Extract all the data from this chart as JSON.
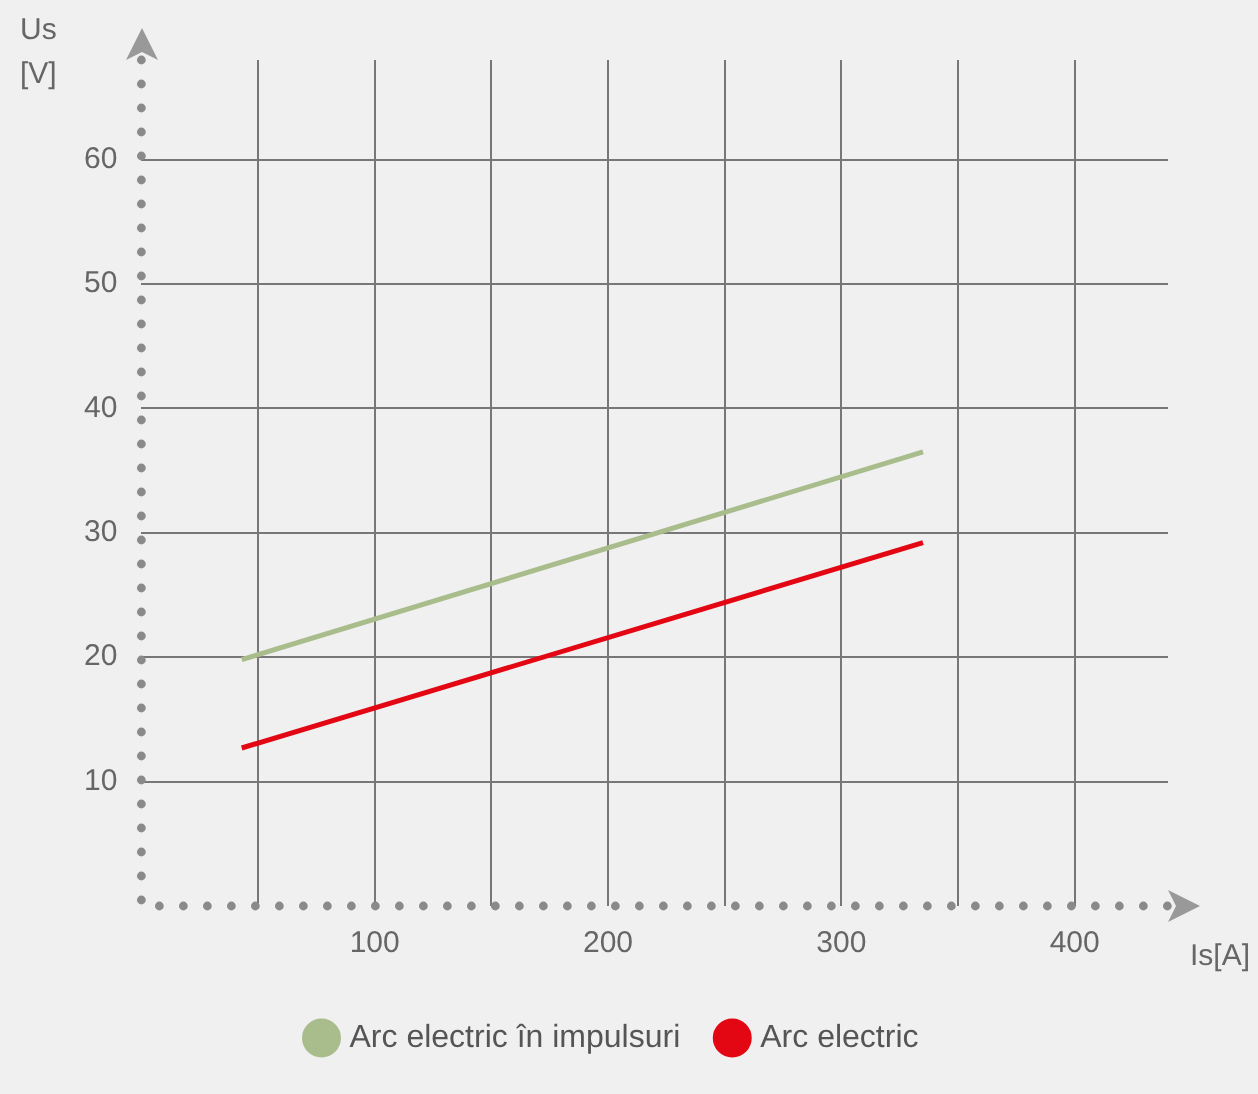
{
  "chart_data": {
    "type": "line",
    "xlabel": "Is[A]",
    "ylabel": "Us [V]",
    "xlim": [
      0,
      440
    ],
    "ylim": [
      0,
      68
    ],
    "xticks": [
      {
        "value": 50,
        "label": null
      },
      100,
      {
        "value": 150,
        "label": null
      },
      200,
      {
        "value": 250,
        "label": null
      },
      300,
      {
        "value": 350,
        "label": null
      },
      400
    ],
    "yticks": [
      10,
      20,
      30,
      40,
      50,
      60
    ],
    "grid": true,
    "legend": "bottom",
    "marker": "none",
    "line_style": "solid",
    "x": [
      43,
      335
    ],
    "series": [
      {
        "name": "Arc electric în impulsuri",
        "color": "#a8bc8c",
        "values": [
          19.8,
          36.5
        ]
      },
      {
        "name": "Arc electric",
        "color": "#e30613",
        "values": [
          12.7,
          29.2
        ]
      }
    ]
  }
}
